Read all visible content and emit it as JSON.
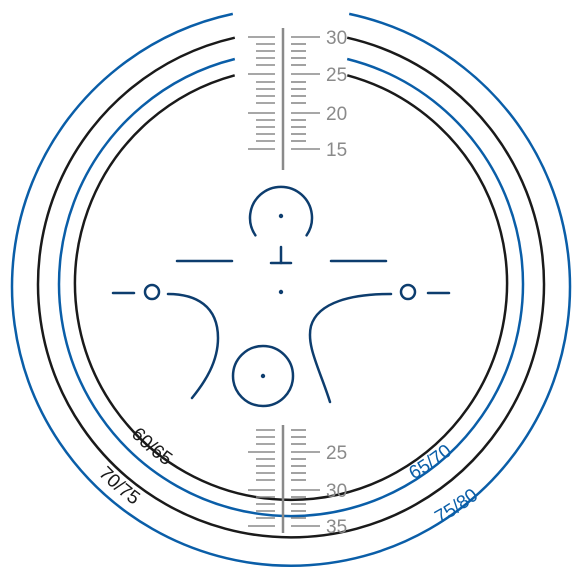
{
  "colors": {
    "blue": "#0a5ea8",
    "navy": "#0d3d6e",
    "black": "#1a1a1a",
    "gray": "#8a8a8a"
  },
  "top_scale": {
    "labels": [
      "30",
      "25",
      "20",
      "15"
    ]
  },
  "bottom_scale": {
    "labels": [
      "25",
      "30",
      "35"
    ]
  },
  "arc_labels": {
    "black_inner": "60/65",
    "black_outer": "70/75",
    "blue_inner": "65/70",
    "blue_outer": "75/80"
  }
}
